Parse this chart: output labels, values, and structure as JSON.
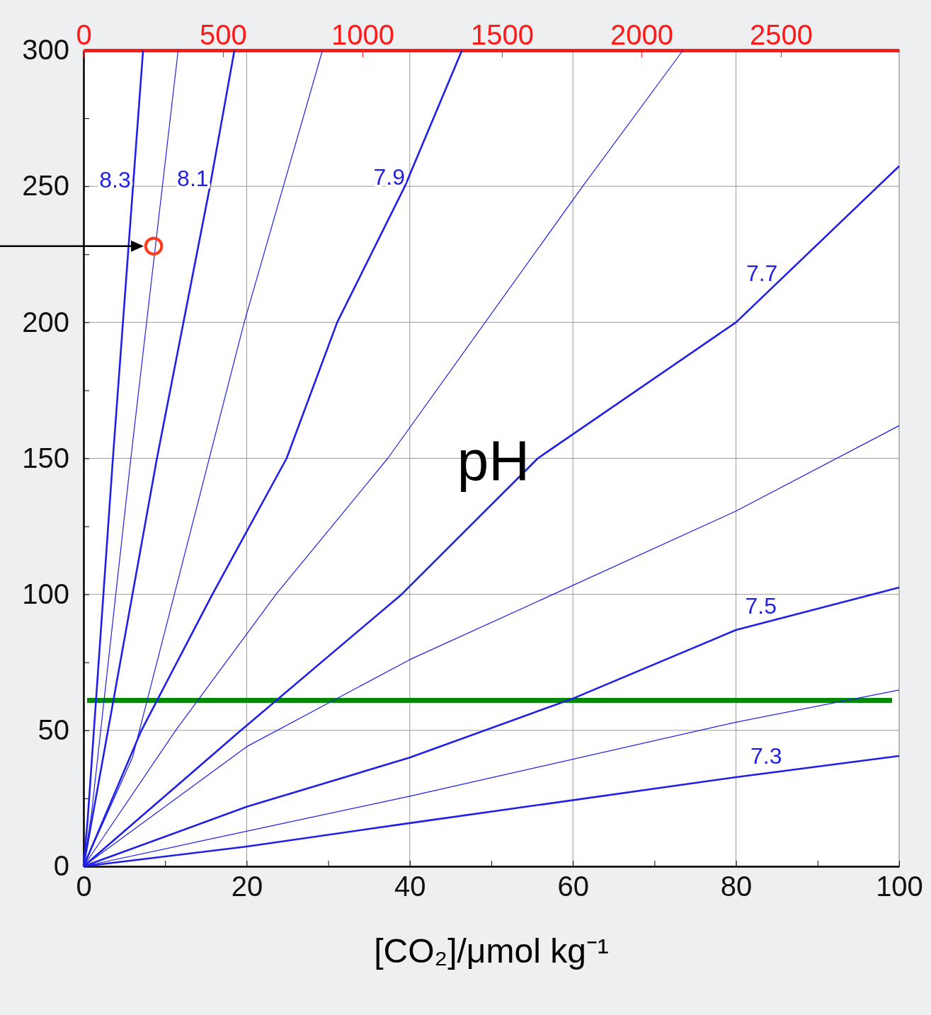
{
  "chart_data": {
    "type": "line",
    "xlabel": "[CO₂]/μmol kg⁻¹",
    "xlim": [
      0,
      100
    ],
    "xticks": [
      0,
      {
        "value": 10,
        "label": null
      },
      20,
      {
        "value": 30,
        "label": null
      },
      40,
      {
        "value": 50,
        "label": null
      },
      60,
      {
        "value": 70,
        "label": null
      },
      80,
      {
        "value": 90,
        "label": null
      },
      100
    ],
    "ylim": [
      0,
      300
    ],
    "yticks": [
      0,
      {
        "value": 25,
        "label": null
      },
      50,
      {
        "value": 75,
        "label": null
      },
      100,
      {
        "value": 125,
        "label": null
      },
      150,
      {
        "value": 175,
        "label": null
      },
      200,
      {
        "value": 225,
        "label": null
      },
      250,
      {
        "value": 275,
        "label": null
      },
      300
    ],
    "x2lim": [
      0,
      2924
    ],
    "x2ticks": [
      0,
      500,
      1000,
      1500,
      2000,
      2500
    ],
    "grid": true,
    "annotations": [
      "pH"
    ],
    "ref_lines": [
      {
        "axis": "y",
        "value": 61,
        "color": "#008a00"
      }
    ],
    "series": [
      {
        "name": "8.3",
        "color": "#1f1fe8",
        "x": [
          0,
          0.5,
          3.6,
          7.3
        ],
        "values": [
          0,
          17,
          150,
          300
        ]
      },
      {
        "color": "#1f1fe8",
        "x": [
          0,
          1,
          5.8,
          11.6
        ],
        "values": [
          0,
          20,
          150,
          300
        ]
      },
      {
        "name": "8.1",
        "color": "#1f1fe8",
        "x": [
          0,
          1.2,
          9,
          15.5,
          18.5
        ],
        "values": [
          0,
          20,
          150,
          250,
          300
        ]
      },
      {
        "color": "#1f1fe8",
        "x": [
          0,
          6,
          19.7,
          29.3
        ],
        "values": [
          0,
          40,
          200,
          300
        ]
      },
      {
        "name": "7.9",
        "color": "#1f1fe8",
        "x": [
          0,
          7.1,
          15.8,
          24.9,
          31.1,
          39.4,
          46.4
        ],
        "values": [
          0,
          50,
          100,
          150,
          200,
          250,
          300
        ]
      },
      {
        "color": "#1f1fe8",
        "x": [
          0,
          11.3,
          23.6,
          37.3,
          61.2,
          73.5
        ],
        "values": [
          0,
          50,
          100,
          150,
          250,
          300
        ]
      },
      {
        "name": "7.7",
        "color": "#1f1fe8",
        "x": [
          0,
          19.3,
          39,
          55.7,
          80,
          100
        ],
        "values": [
          0,
          50,
          100,
          150,
          200,
          257.4
        ]
      },
      {
        "color": "#1f1fe8",
        "x": [
          0,
          20,
          40,
          80,
          100
        ],
        "values": [
          0,
          44,
          76,
          130.6,
          162
        ]
      },
      {
        "name": "7.5",
        "color": "#1f1fe8",
        "x": [
          0,
          20,
          40,
          60,
          80,
          100
        ],
        "values": [
          0,
          21.9,
          40,
          61.7,
          86.9,
          102.5
        ]
      },
      {
        "color": "#1f1fe8",
        "x": [
          0,
          40,
          80,
          100
        ],
        "values": [
          0,
          25.8,
          53,
          64.8
        ]
      },
      {
        "name": "7.3",
        "color": "#1f1fe8",
        "x": [
          0,
          20,
          40,
          80,
          100
        ],
        "values": [
          0,
          7.3,
          15.9,
          32.8,
          40.6
        ]
      },
      {
        "type": "scatter",
        "marker": "circle",
        "color": "#ff3a1a",
        "x": [
          8.6
        ],
        "values": [
          228
        ]
      }
    ]
  }
}
